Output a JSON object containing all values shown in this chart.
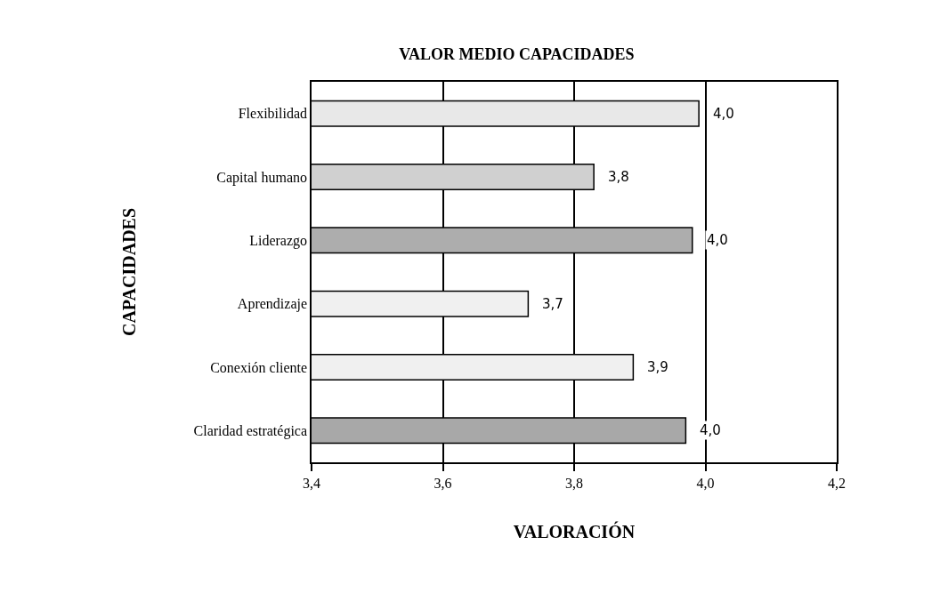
{
  "chart_data": {
    "type": "bar",
    "orientation": "horizontal",
    "title": "VALOR MEDIO CAPACIDADES",
    "xlabel": "VALORACIÓN",
    "ylabel": "CAPACIDADES",
    "categories": [
      "Flexibilidad",
      "Capital humano",
      "Liderazgo",
      "Aprendizaje",
      "Conexión cliente",
      "Claridad estratégica"
    ],
    "values": [
      3.99,
      3.83,
      3.98,
      3.73,
      3.89,
      3.97
    ],
    "value_labels": [
      "4,0",
      "3,8",
      "4,0",
      "3,7",
      "3,9",
      "4,0"
    ],
    "colors": [
      "#e8e8e8",
      "#d0d0d0",
      "#adadad",
      "#f0f0f0",
      "#f0f0f0",
      "#a8a8a8"
    ],
    "xlim": [
      3.4,
      4.2
    ],
    "xticks": [
      {
        "value": 3.4,
        "label": "3,4"
      },
      {
        "value": 3.6,
        "label": "3,6"
      },
      {
        "value": 3.8,
        "label": "3,8"
      },
      {
        "value": 4.0,
        "label": "4,0"
      },
      {
        "value": 4.2,
        "label": "4,2"
      }
    ],
    "grid": "x"
  }
}
